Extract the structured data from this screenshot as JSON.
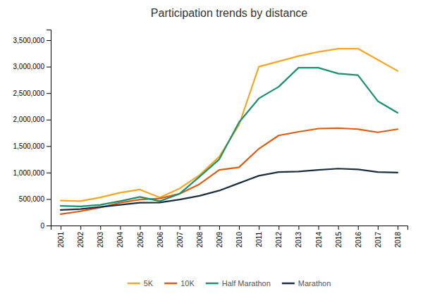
{
  "chart_data": {
    "type": "line",
    "title": "Participation trends by distance",
    "x": [
      2001,
      2002,
      2003,
      2004,
      2005,
      2006,
      2007,
      2008,
      2009,
      2010,
      2011,
      2012,
      2013,
      2014,
      2015,
      2016,
      2017,
      2018
    ],
    "series": [
      {
        "name": "5K",
        "color": "#F5A623",
        "values": [
          470000,
          460000,
          530000,
          620000,
          680000,
          530000,
          700000,
          950000,
          1300000,
          1900000,
          3000000,
          3100000,
          3200000,
          3280000,
          3340000,
          3340000,
          3130000,
          2920000
        ]
      },
      {
        "name": "10K",
        "color": "#E05A10",
        "values": [
          215000,
          270000,
          340000,
          430000,
          490000,
          510000,
          600000,
          780000,
          1050000,
          1100000,
          1450000,
          1700000,
          1770000,
          1830000,
          1840000,
          1820000,
          1760000,
          1820000
        ]
      },
      {
        "name": "Half Marathon",
        "color": "#1A9070",
        "values": [
          370000,
          360000,
          390000,
          460000,
          540000,
          460000,
          600000,
          920000,
          1250000,
          1950000,
          2400000,
          2620000,
          2980000,
          2980000,
          2870000,
          2840000,
          2350000,
          2130000
        ]
      },
      {
        "name": "Marathon",
        "color": "#1C2E3D",
        "values": [
          295000,
          310000,
          350000,
          390000,
          430000,
          435000,
          490000,
          560000,
          660000,
          800000,
          940000,
          1010000,
          1020000,
          1050000,
          1075000,
          1060000,
          1010000,
          1000000
        ]
      }
    ],
    "xlim": [
      2000.5,
      2018.5
    ],
    "xticks": [
      2001,
      2002,
      2003,
      2004,
      2005,
      2006,
      2007,
      2008,
      2009,
      2010,
      2011,
      2012,
      2013,
      2014,
      2015,
      2016,
      2017,
      2018
    ],
    "ylim": [
      0,
      3700000
    ],
    "yticks": [
      0,
      {
        "value": 500000,
        "label": "500,000"
      },
      {
        "value": 1000000,
        "label": "1,000,000"
      },
      {
        "value": 1500000,
        "label": "1,500,000"
      },
      {
        "value": 2000000,
        "label": "2,000,000"
      },
      {
        "value": 2500000,
        "label": "2,500,000"
      },
      {
        "value": 3000000,
        "label": "3,000,000"
      },
      {
        "value": 3500000,
        "label": "3,500,000"
      }
    ],
    "grid": false,
    "legend": "bottom"
  }
}
